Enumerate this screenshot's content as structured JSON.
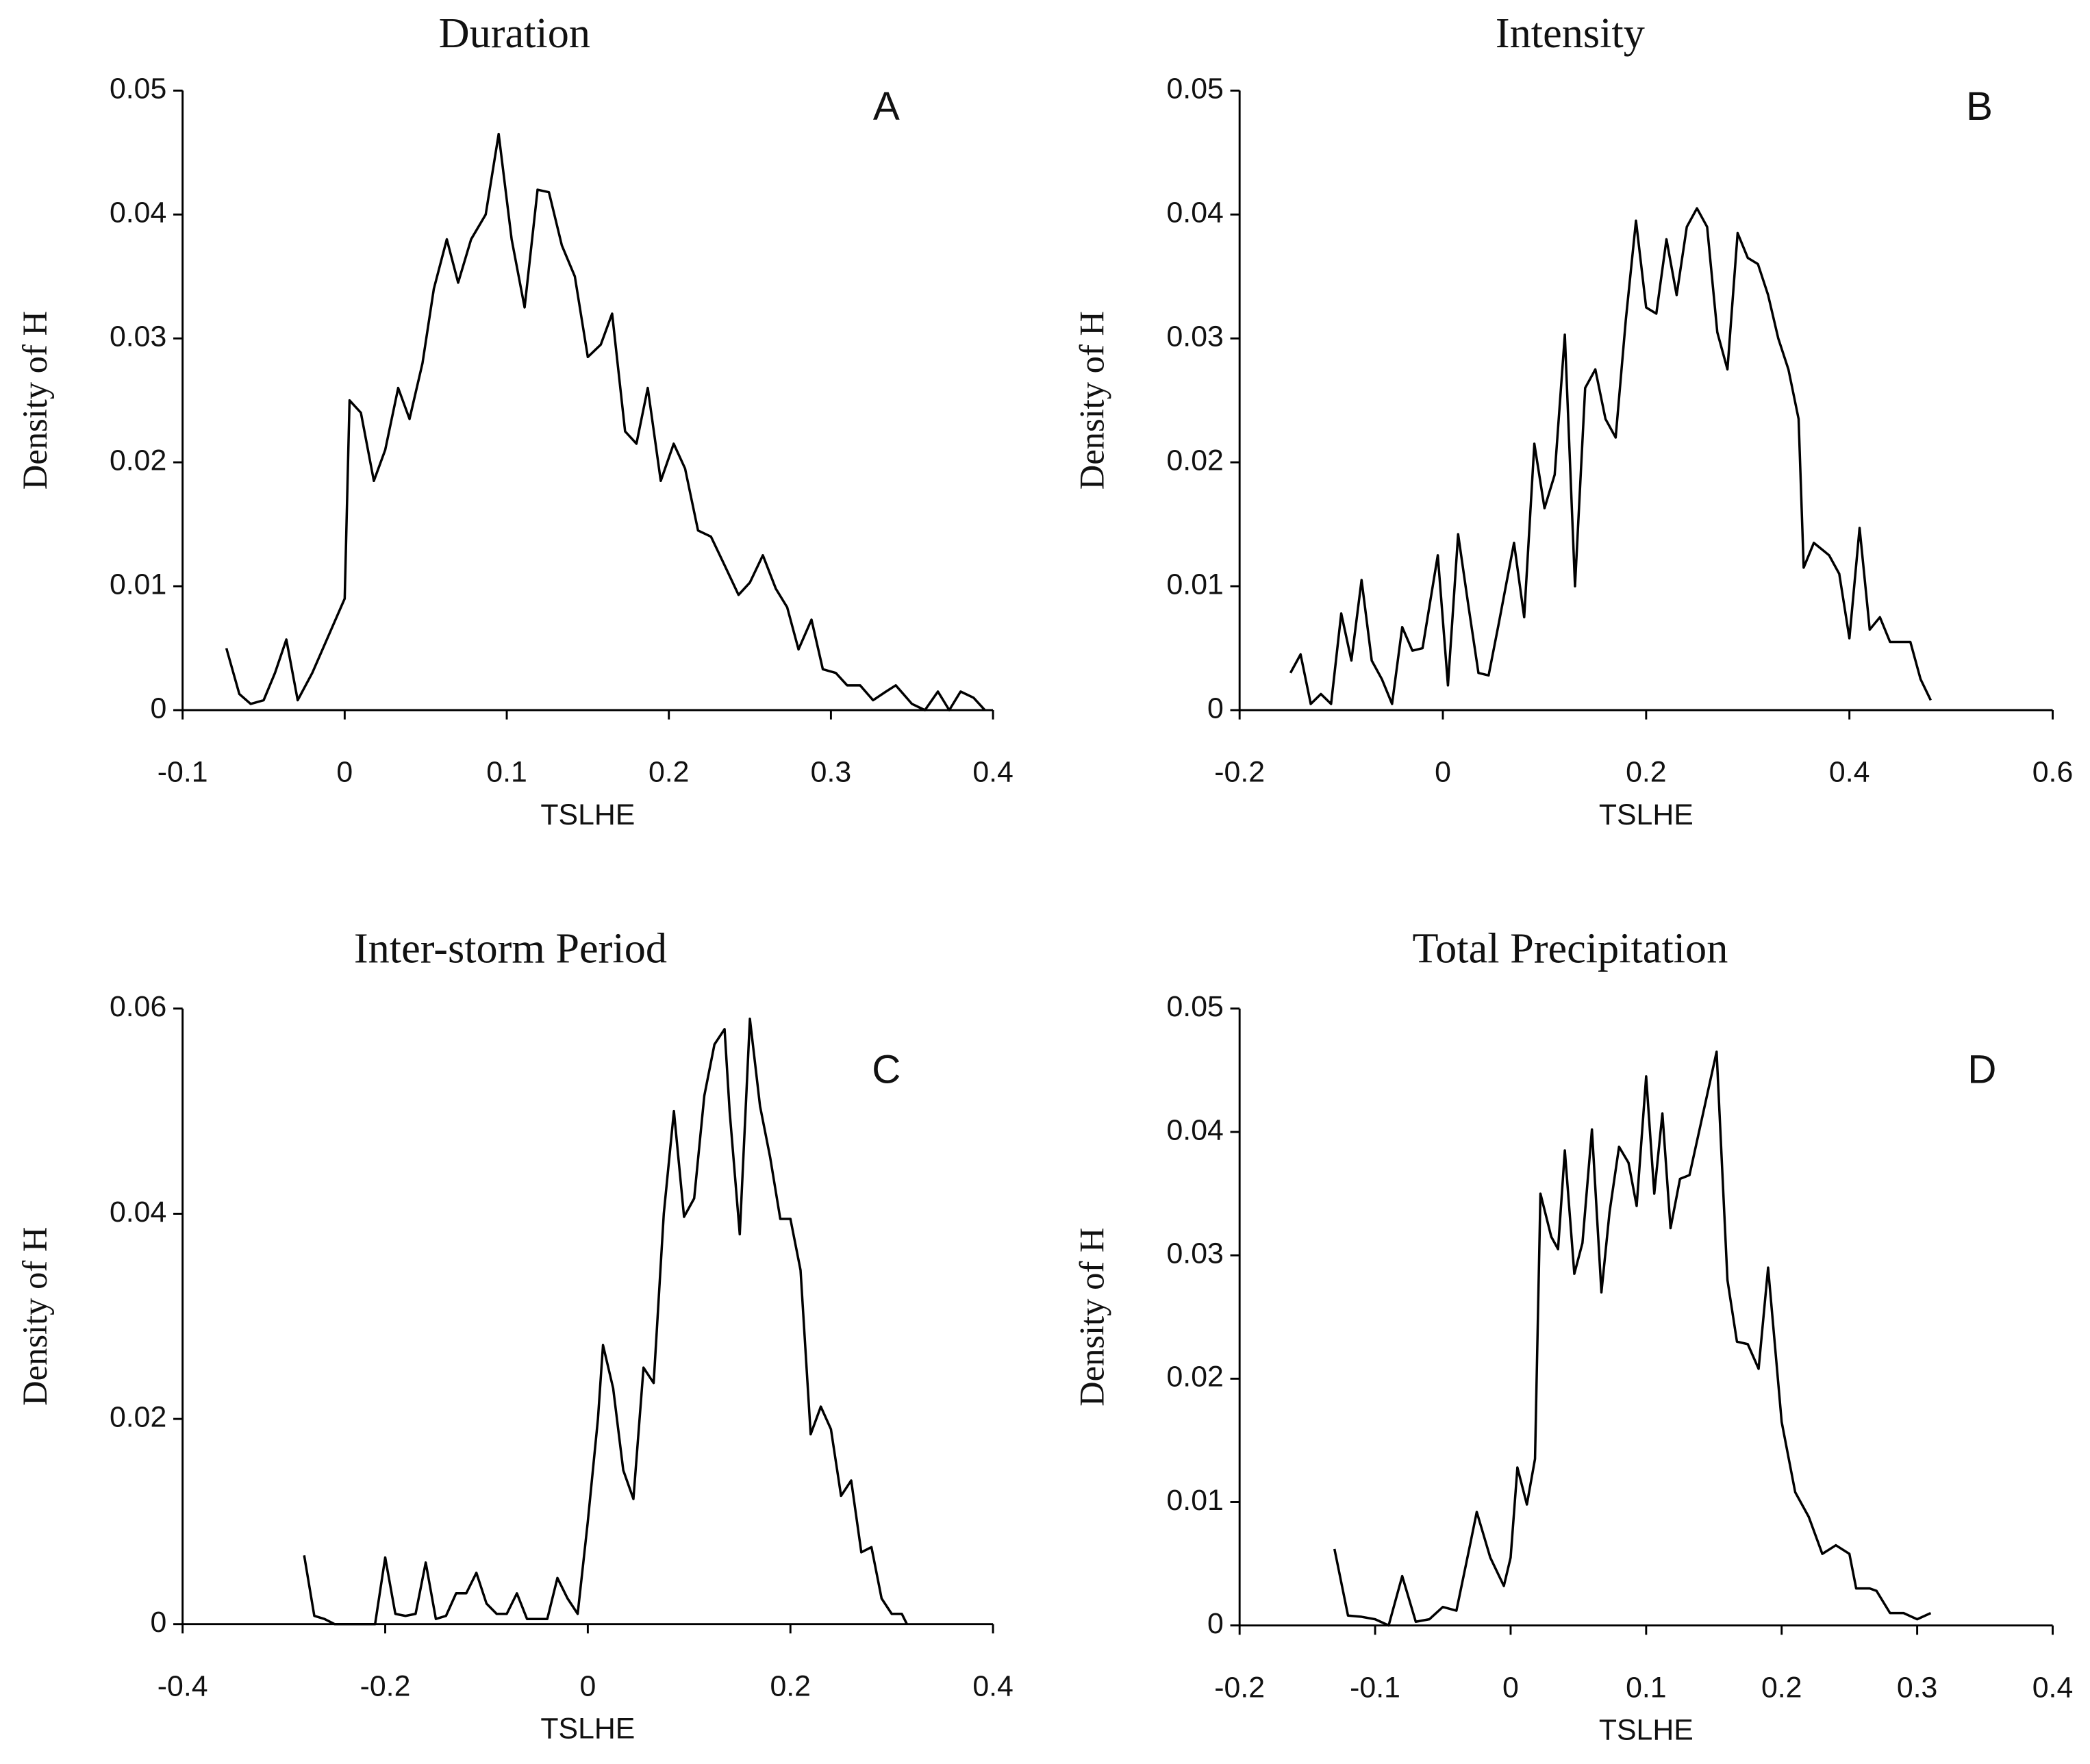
{
  "chart_data": [
    {
      "type": "line",
      "title": "Duration",
      "annotation": "A",
      "x_label": "TSLHE",
      "y_label": "Density of H",
      "color": "#000000",
      "xlim": [
        -0.1,
        0.4
      ],
      "ylim": [
        0,
        0.05
      ],
      "xticks": [
        -0.1,
        0,
        0.1,
        0.2,
        0.3,
        0.4
      ],
      "yticks": [
        0,
        0.01,
        0.02,
        0.03,
        0.04,
        0.05
      ],
      "x": [
        -0.073,
        -0.065,
        -0.058,
        -0.05,
        -0.043,
        -0.036,
        -0.029,
        -0.02,
        -0.01,
        0,
        0.003,
        0.01,
        0.018,
        0.025,
        0.033,
        0.04,
        0.048,
        0.055,
        0.063,
        0.07,
        0.078,
        0.087,
        0.095,
        0.103,
        0.111,
        0.119,
        0.126,
        0.134,
        0.142,
        0.15,
        0.158,
        0.165,
        0.173,
        0.18,
        0.187,
        0.195,
        0.203,
        0.21,
        0.218,
        0.226,
        0.234,
        0.243,
        0.25,
        0.258,
        0.266,
        0.273,
        0.28,
        0.288,
        0.295,
        0.303,
        0.31,
        0.318,
        0.326,
        0.334,
        0.34,
        0.35,
        0.358,
        0.366,
        0.373,
        0.38,
        0.388,
        0.395
      ],
      "values": [
        0.005,
        0.0013,
        0.0005,
        0.0008,
        0.003,
        0.0057,
        0.0008,
        0.003,
        0.006,
        0.009,
        0.025,
        0.024,
        0.0185,
        0.021,
        0.026,
        0.0235,
        0.028,
        0.034,
        0.038,
        0.0345,
        0.038,
        0.04,
        0.0465,
        0.038,
        0.0325,
        0.042,
        0.0418,
        0.0375,
        0.035,
        0.0285,
        0.0295,
        0.032,
        0.0225,
        0.0215,
        0.026,
        0.0185,
        0.0215,
        0.0195,
        0.0145,
        0.014,
        0.0118,
        0.0093,
        0.0103,
        0.0125,
        0.0098,
        0.0083,
        0.0049,
        0.0073,
        0.0033,
        0.003,
        0.002,
        0.002,
        0.0008,
        0.0015,
        0.002,
        0.0005,
        0,
        0.0015,
        0,
        0.0015,
        0.001,
        0
      ]
    },
    {
      "type": "line",
      "title": "Intensity",
      "annotation": "B",
      "x_label": "TSLHE",
      "y_label": "Density of H",
      "color": "#000000",
      "xlim": [
        -0.2,
        0.6
      ],
      "ylim": [
        0,
        0.05
      ],
      "xticks": [
        -0.2,
        0,
        0.2,
        0.4,
        0.6
      ],
      "yticks": [
        0,
        0.01,
        0.02,
        0.03,
        0.04,
        0.05
      ],
      "x": [
        -0.15,
        -0.14,
        -0.13,
        -0.12,
        -0.11,
        -0.1,
        -0.09,
        -0.08,
        -0.07,
        -0.06,
        -0.05,
        -0.04,
        -0.03,
        -0.02,
        -0.005,
        0.005,
        0.015,
        0.025,
        0.035,
        0.045,
        0.055,
        0.07,
        0.08,
        0.09,
        0.1,
        0.11,
        0.12,
        0.13,
        0.14,
        0.15,
        0.16,
        0.17,
        0.18,
        0.19,
        0.2,
        0.21,
        0.22,
        0.23,
        0.24,
        0.25,
        0.26,
        0.27,
        0.28,
        0.29,
        0.3,
        0.31,
        0.32,
        0.33,
        0.34,
        0.35,
        0.355,
        0.365,
        0.38,
        0.39,
        0.4,
        0.41,
        0.42,
        0.43,
        0.44,
        0.46,
        0.47,
        0.48
      ],
      "values": [
        0.003,
        0.0045,
        0.0005,
        0.0013,
        0.0005,
        0.0078,
        0.004,
        0.0105,
        0.004,
        0.0025,
        0.0005,
        0.0067,
        0.0048,
        0.005,
        0.0125,
        0.002,
        0.0142,
        0.0085,
        0.003,
        0.0028,
        0.007,
        0.0135,
        0.0075,
        0.0215,
        0.0163,
        0.019,
        0.0303,
        0.01,
        0.026,
        0.0275,
        0.0235,
        0.022,
        0.0315,
        0.0395,
        0.0325,
        0.032,
        0.038,
        0.0335,
        0.039,
        0.0405,
        0.039,
        0.0305,
        0.0275,
        0.0385,
        0.0365,
        0.036,
        0.0335,
        0.03,
        0.0275,
        0.0235,
        0.0115,
        0.0135,
        0.0125,
        0.011,
        0.0058,
        0.0147,
        0.0065,
        0.0075,
        0.0055,
        0.0055,
        0.0025,
        0.0008
      ]
    },
    {
      "type": "line",
      "title": "Inter-storm Period",
      "annotation": "C",
      "x_label": "TSLHE",
      "y_label": "Density of H",
      "color": "#000000",
      "xlim": [
        -0.4,
        0.4
      ],
      "ylim": [
        0,
        0.06
      ],
      "xticks": [
        -0.4,
        -0.2,
        0,
        0.2,
        0.4
      ],
      "yticks": [
        0,
        0.02,
        0.04,
        0.06
      ],
      "x": [
        -0.28,
        -0.27,
        -0.26,
        -0.25,
        -0.21,
        -0.2,
        -0.19,
        -0.18,
        -0.17,
        -0.16,
        -0.15,
        -0.14,
        -0.13,
        -0.12,
        -0.11,
        -0.1,
        -0.09,
        -0.08,
        -0.07,
        -0.06,
        -0.05,
        -0.04,
        -0.03,
        -0.02,
        -0.01,
        0,
        0.01,
        0.015,
        0.025,
        0.035,
        0.045,
        0.055,
        0.065,
        0.075,
        0.085,
        0.095,
        0.105,
        0.115,
        0.125,
        0.135,
        0.14,
        0.15,
        0.16,
        0.17,
        0.18,
        0.19,
        0.2,
        0.21,
        0.22,
        0.23,
        0.24,
        0.25,
        0.26,
        0.27,
        0.28,
        0.29,
        0.3,
        0.31,
        0.315
      ],
      "values": [
        0.0067,
        0.0008,
        0.0005,
        0,
        0,
        0.0065,
        0.001,
        0.0008,
        0.001,
        0.006,
        0.0005,
        0.0008,
        0.003,
        0.003,
        0.005,
        0.002,
        0.001,
        0.001,
        0.003,
        0.0005,
        0.0005,
        0.0005,
        0.0045,
        0.0025,
        0.001,
        0.01,
        0.02,
        0.0272,
        0.023,
        0.015,
        0.0122,
        0.025,
        0.0235,
        0.04,
        0.05,
        0.0397,
        0.0415,
        0.0515,
        0.0565,
        0.058,
        0.05,
        0.038,
        0.059,
        0.0505,
        0.0455,
        0.0395,
        0.0395,
        0.0345,
        0.0185,
        0.0212,
        0.019,
        0.0125,
        0.014,
        0.007,
        0.0075,
        0.0025,
        0.001,
        0.001,
        0
      ]
    },
    {
      "type": "line",
      "title": "Total Precipitation",
      "annotation": "D",
      "x_label": "TSLHE",
      "y_label": "Density of H",
      "color": "#000000",
      "xlim": [
        -0.2,
        0.4
      ],
      "ylim": [
        0,
        0.05
      ],
      "xticks": [
        -0.2,
        -0.1,
        0,
        0.1,
        0.2,
        0.3,
        0.4
      ],
      "yticks": [
        0,
        0.01,
        0.02,
        0.03,
        0.04,
        0.05
      ],
      "x": [
        -0.13,
        -0.12,
        -0.11,
        -0.1,
        -0.09,
        -0.08,
        -0.07,
        -0.06,
        -0.05,
        -0.04,
        -0.03,
        -0.025,
        -0.015,
        -0.005,
        0,
        0.005,
        0.012,
        0.018,
        0.022,
        0.03,
        0.035,
        0.04,
        0.047,
        0.053,
        0.06,
        0.067,
        0.073,
        0.08,
        0.087,
        0.093,
        0.1,
        0.106,
        0.112,
        0.118,
        0.125,
        0.132,
        0.14,
        0.152,
        0.16,
        0.167,
        0.175,
        0.183,
        0.19,
        0.2,
        0.21,
        0.22,
        0.23,
        0.24,
        0.25,
        0.255,
        0.265,
        0.27,
        0.28,
        0.29,
        0.3,
        0.31
      ],
      "values": [
        0.0062,
        0.0008,
        0.0007,
        0.0005,
        0,
        0.004,
        0.0003,
        0.0005,
        0.0015,
        0.0012,
        0.0065,
        0.0092,
        0.0055,
        0.0032,
        0.0055,
        0.0128,
        0.0098,
        0.0135,
        0.035,
        0.0315,
        0.0305,
        0.0385,
        0.0285,
        0.031,
        0.0402,
        0.027,
        0.0335,
        0.0388,
        0.0375,
        0.034,
        0.0445,
        0.035,
        0.0415,
        0.0322,
        0.0362,
        0.0365,
        0.0405,
        0.0465,
        0.028,
        0.023,
        0.0228,
        0.0208,
        0.029,
        0.0165,
        0.0108,
        0.0088,
        0.0058,
        0.0065,
        0.0058,
        0.003,
        0.003,
        0.0028,
        0.001,
        0.001,
        0.0005,
        0.001
      ]
    }
  ]
}
